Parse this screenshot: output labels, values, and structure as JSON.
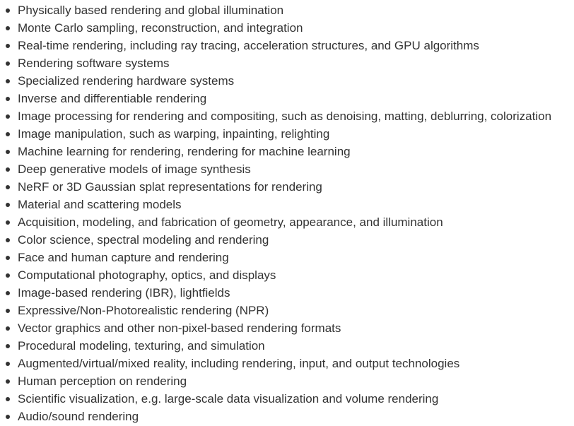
{
  "topics": [
    "Physically based rendering and global illumination",
    "Monte Carlo sampling, reconstruction, and integration",
    "Real-time rendering, including ray tracing, acceleration structures, and GPU algorithms",
    "Rendering software systems",
    "Specialized rendering hardware systems",
    "Inverse and differentiable rendering",
    "Image processing for rendering and compositing, such as denoising, matting, deblurring, colorization",
    "Image manipulation, such as warping, inpainting, relighting",
    "Machine learning for rendering, rendering for machine learning",
    "Deep generative models of image synthesis",
    "NeRF or 3D Gaussian splat representations for rendering",
    "Material and scattering models",
    "Acquisition, modeling, and fabrication of geometry, appearance, and illumination",
    "Color science, spectral modeling and rendering",
    "Face and human capture and rendering",
    "Computational photography, optics, and displays",
    "Image-based rendering (IBR), lightfields",
    "Expressive/Non-Photorealistic rendering (NPR)",
    "Vector graphics and other non-pixel-based rendering formats",
    "Procedural modeling, texturing, and simulation",
    "Augmented/virtual/mixed reality, including rendering, input, and output technologies",
    "Human perception on rendering",
    "Scientific visualization, e.g. large-scale data visualization and volume rendering",
    "Audio/sound rendering"
  ],
  "colors": {
    "text": "#333333",
    "background": "#ffffff"
  }
}
